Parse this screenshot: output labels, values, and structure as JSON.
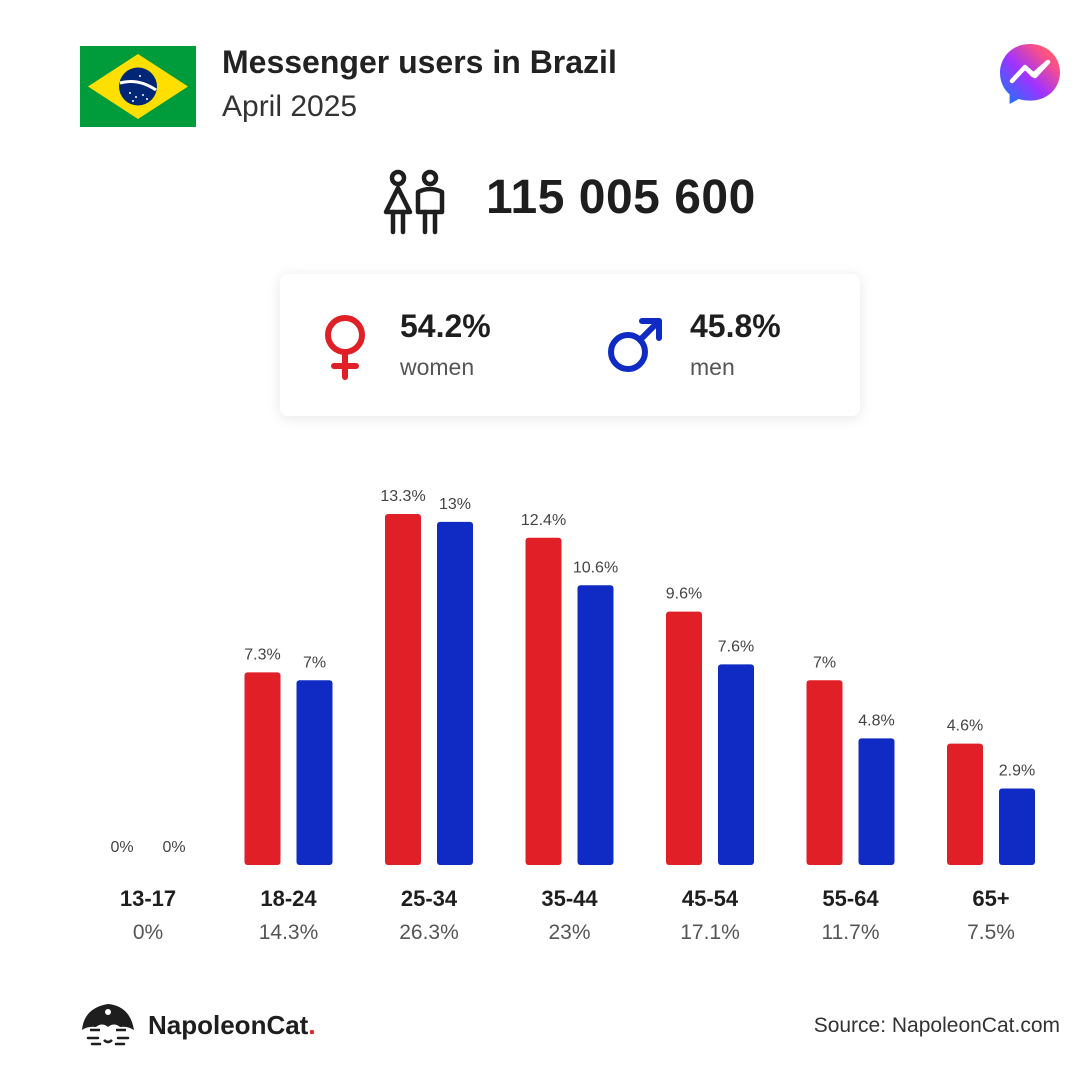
{
  "header": {
    "title": "Messenger users in Brazil",
    "subtitle": "April 2025",
    "total_users": "115 005 600"
  },
  "gender": {
    "women": {
      "percent": "54.2%",
      "label": "women"
    },
    "men": {
      "percent": "45.8%",
      "label": "men"
    }
  },
  "chart_data": {
    "type": "bar",
    "categories": [
      "13-17",
      "18-24",
      "25-34",
      "35-44",
      "45-54",
      "55-64",
      "65+"
    ],
    "category_totals": [
      "0%",
      "14.3%",
      "26.3%",
      "23%",
      "17.1%",
      "11.7%",
      "7.5%"
    ],
    "series": [
      {
        "values": [
          0,
          7.3,
          13.3,
          12.4,
          9.6,
          7,
          4.6
        ],
        "labels": [
          "0%",
          "7.3%",
          "13.3%",
          "12.4%",
          "9.6%",
          "7%",
          "4.6%"
        ],
        "color": "#e01f26"
      },
      {
        "values": [
          0,
          7,
          13,
          10.6,
          7.6,
          4.8,
          2.9
        ],
        "labels": [
          "0%",
          "7%",
          "13%",
          "10.6%",
          "7.6%",
          "4.8%",
          "2.9%"
        ],
        "color": "#0f2bc4"
      }
    ],
    "ylim": [
      0,
      13.3
    ],
    "grid": false,
    "legend": "none"
  },
  "footer": {
    "brand": "NapoleonCat",
    "brand_dot": ".",
    "source": "Source: NapoleonCat.com"
  },
  "colors": {
    "women": "#e01f26",
    "men": "#0f2bc4",
    "flag_green": "#009c3b",
    "flag_yellow": "#ffdf00",
    "flag_blue": "#002776"
  },
  "icons": {
    "flag": "brazil-flag-icon",
    "brand": "messenger-icon",
    "people": "people-icon",
    "female": "female-icon",
    "male": "male-icon",
    "footer": "napoleoncat-logo-icon"
  }
}
